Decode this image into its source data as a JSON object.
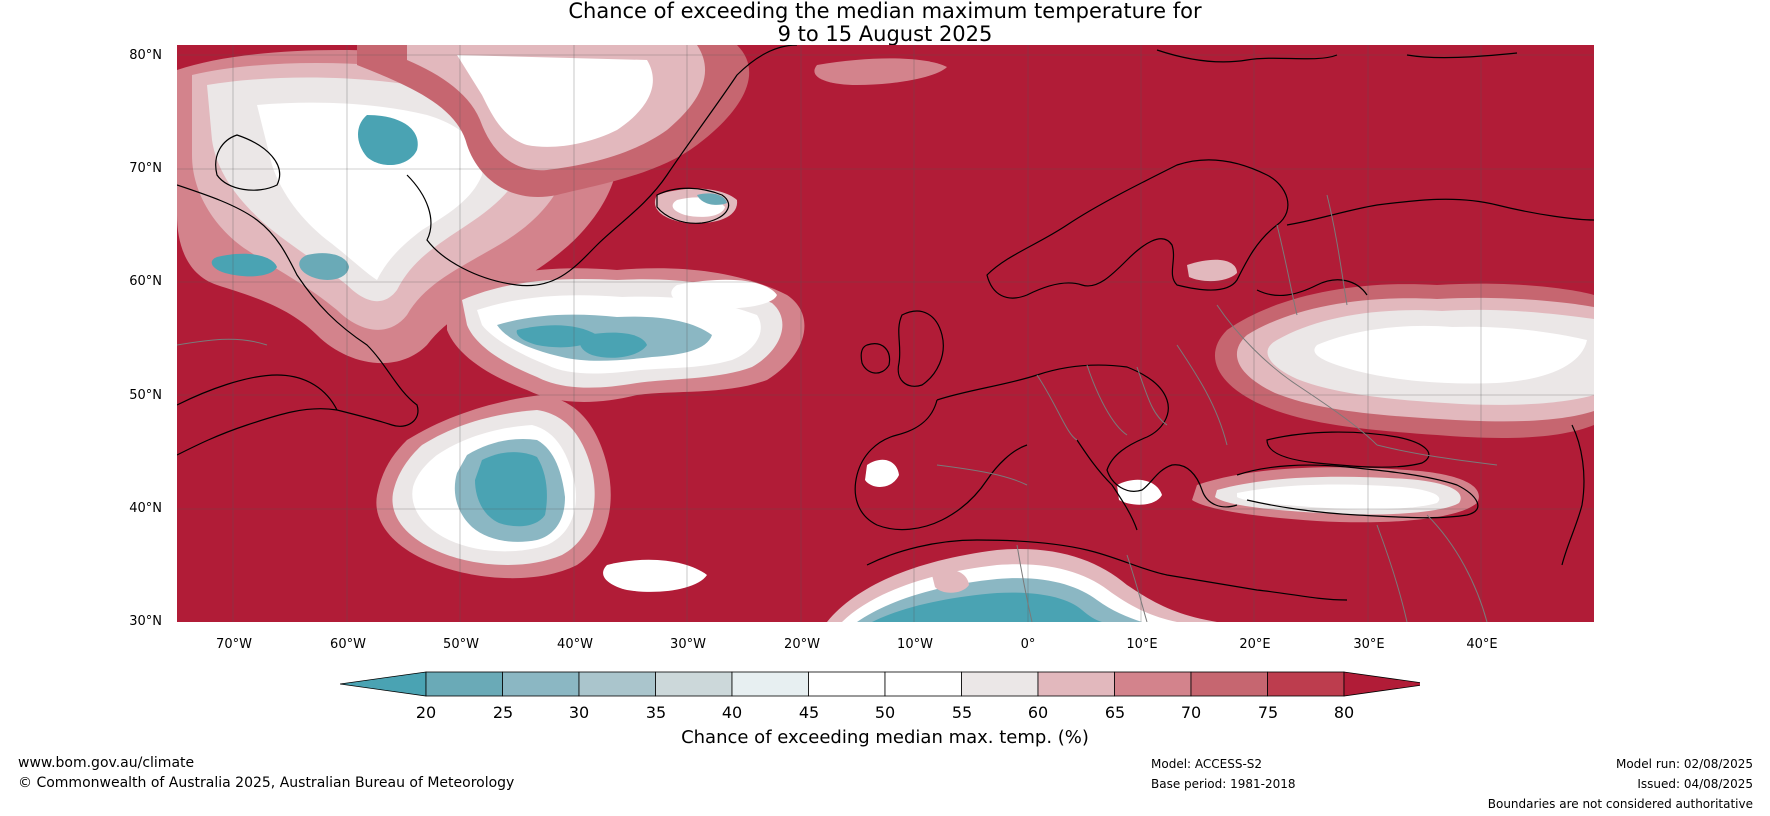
{
  "title": {
    "line1": "Chance of exceeding the median maximum temperature for",
    "line2": "9 to 15 August 2025"
  },
  "map": {
    "lat_labels": [
      "80°N",
      "70°N",
      "60°N",
      "50°N",
      "40°N",
      "30°N"
    ],
    "lon_labels": [
      "70°W",
      "60°W",
      "50°W",
      "40°W",
      "30°W",
      "20°W",
      "10°W",
      "0°",
      "10°E",
      "20°E",
      "30°E",
      "40°E"
    ],
    "background_class_color": "#b11c37",
    "land_border_color": "#000000",
    "country_border_color": "#7a7a7a"
  },
  "colorbar": {
    "tick_labels": [
      "20",
      "25",
      "30",
      "35",
      "40",
      "45",
      "50",
      "55",
      "60",
      "65",
      "70",
      "75",
      "80"
    ],
    "colors": [
      "#4aa3b3",
      "#6aaab7",
      "#8bb7c3",
      "#aac5cc",
      "#ccd8da",
      "#e7eff1",
      "#ffffff",
      "#ffffff",
      "#ebe7e7",
      "#e2b8bd",
      "#d3838c",
      "#c66670",
      "#bd3d4e",
      "#b11c37"
    ],
    "label": "Chance of exceeding median max. temp. (%)"
  },
  "footer": {
    "website": "www.bom.gov.au/climate",
    "copyright": "© Commonwealth of Australia 2025, Australian Bureau of Meteorology",
    "model": "Model: ACCESS-S2",
    "base_period": "Base period: 1981-2018",
    "model_run": "Model run: 02/08/2025",
    "issued": "Issued: 04/08/2025",
    "disclaimer": "Boundaries are not considered authoritative"
  }
}
